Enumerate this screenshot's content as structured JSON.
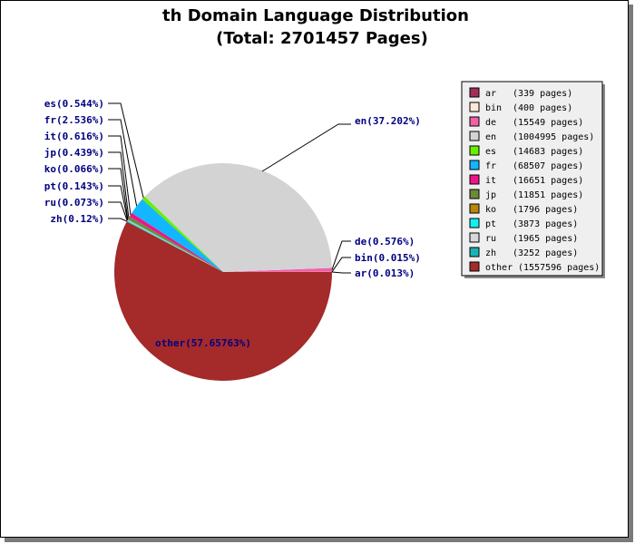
{
  "chart_data": {
    "type": "pie",
    "title": "th Domain Language Distribution",
    "subtitle": "(Total: 2701457 Pages)",
    "slices": [
      {
        "name": "ar",
        "pages": 339,
        "label": "ar(0.013%)",
        "legend": "(339 pages)",
        "color": "#a0305a"
      },
      {
        "name": "bin",
        "pages": 400,
        "label": "bin(0.015%)",
        "legend": "(400 pages)",
        "color": "#fbe9d6"
      },
      {
        "name": "de",
        "pages": 15549,
        "label": "de(0.576%)",
        "legend": "(15549 pages)",
        "color": "#f062a8"
      },
      {
        "name": "en",
        "pages": 1004995,
        "label": "en(37.202%)",
        "legend": "(1004995 pages)",
        "color": "#d3d3d3"
      },
      {
        "name": "es",
        "pages": 14683,
        "label": "es(0.544%)",
        "legend": "(14683 pages)",
        "color": "#66f000"
      },
      {
        "name": "fr",
        "pages": 68507,
        "label": "fr(2.536%)",
        "legend": "(68507 pages)",
        "color": "#13b6ff"
      },
      {
        "name": "it",
        "pages": 16651,
        "label": "it(0.616%)",
        "legend": "(16651 pages)",
        "color": "#f0138a"
      },
      {
        "name": "jp",
        "pages": 11851,
        "label": "jp(0.439%)",
        "legend": "(11851 pages)",
        "color": "#6b8a3a"
      },
      {
        "name": "ko",
        "pages": 1796,
        "label": "ko(0.066%)",
        "legend": "(1796 pages)",
        "color": "#b8860b"
      },
      {
        "name": "pt",
        "pages": 3873,
        "label": "pt(0.143%)",
        "legend": "(3873 pages)",
        "color": "#13f0f0"
      },
      {
        "name": "ru",
        "pages": 1965,
        "label": "ru(0.073%)",
        "legend": "(1965 pages)",
        "color": "#d8d8d8"
      },
      {
        "name": "zh",
        "pages": 3252,
        "label": "zh(0.12%)",
        "legend": "(3252 pages)",
        "color": "#1ab3b3"
      },
      {
        "name": "other",
        "pages": 1557596,
        "label": "other(57.65763%)",
        "legend": "(1557596 pages)",
        "color": "#a52a2a"
      }
    ],
    "legend_position": "top-right"
  }
}
